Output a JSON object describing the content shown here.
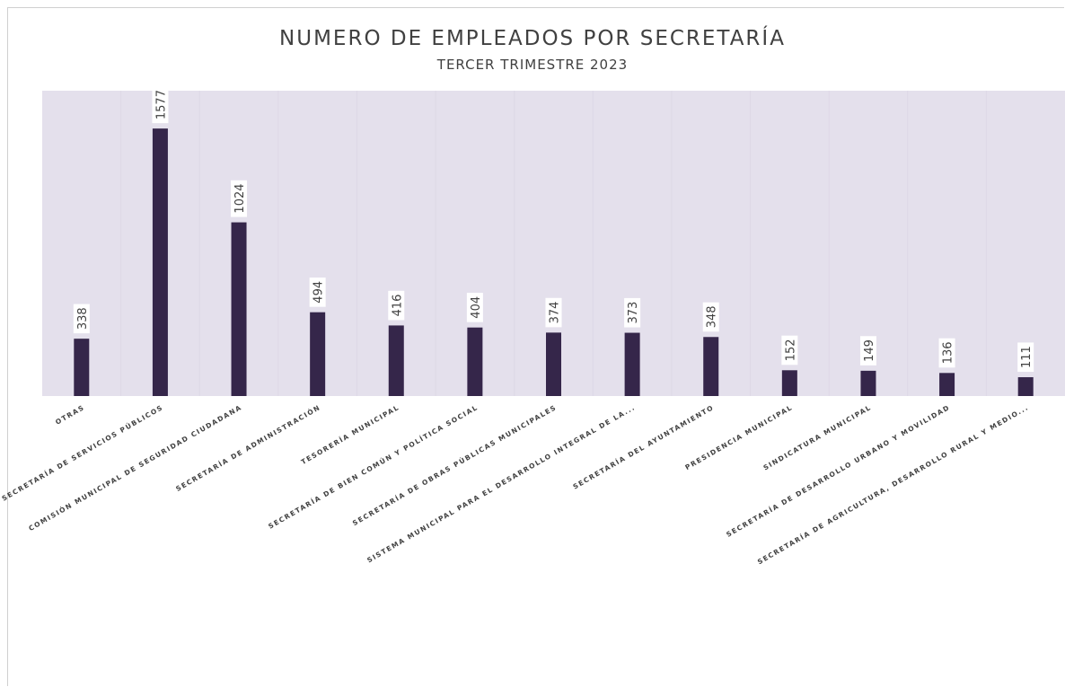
{
  "chart_data": {
    "type": "bar",
    "title": "NUMERO DE EMPLEADOS POR SECRETARÍA",
    "subtitle": "TERCER TRIMESTRE 2023",
    "categories": [
      "OTRAS",
      "SECRETARÍA DE SERVICIOS PÚBLICOS",
      "COMISIÓN MUNICIPAL DE SEGURIDAD CIUDADANA",
      "SECRETARÍA DE ADMINISTRACIÓN",
      "TESORERÍA MUNICIPAL",
      "SECRETARÍA DE BIEN COMÚN Y POLÍTICA SOCIAL",
      "SECRETARÍA DE OBRAS PÚBLICAS MUNICIPALES",
      "SISTEMA MUNICIPAL PARA EL DESARROLLO INTEGRAL DE LA...",
      "SECRETARÍA DEL AYUNTAMIENTO",
      "PRESIDENCIA MUNICIPAL",
      "SINDICATURA MUNICIPAL",
      "SECRETARÍA DE DESARROLLO URBANO Y MOVILIDAD",
      "SECRETARÍA DE AGRICULTURA, DESARROLLO RURAL Y MEDIO..."
    ],
    "values": [
      338,
      1577,
      1024,
      494,
      416,
      404,
      374,
      373,
      348,
      152,
      149,
      136,
      111
    ],
    "ylim": [
      0,
      1800
    ],
    "grid": false,
    "legend": "none",
    "colors": {
      "bar": "#35264a",
      "plot_background": "#e4e0ec",
      "band_divider": "#ddd8e6",
      "text": "#404040"
    }
  }
}
